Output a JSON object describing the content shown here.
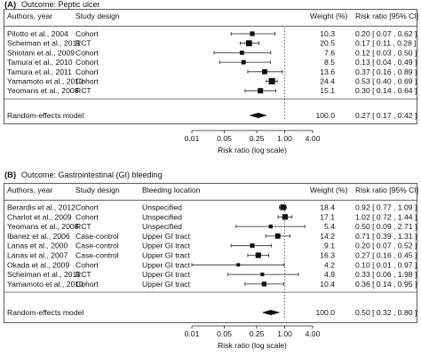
{
  "chart_data": [
    {
      "type": "forest",
      "panel_label": "(A)",
      "title": "Outcome: Peptic ulcer",
      "columns": {
        "authors": "Authors, year",
        "design": "Study design",
        "weight": "Weight (%)",
        "rr": "Risk ratio [95% CI]"
      },
      "studies": [
        {
          "author": "Pilotto et al., 2004",
          "design": "Cohort",
          "weight": "10.3",
          "rr": 0.2,
          "lo": 0.07,
          "hi": 0.62,
          "rr_text": "0.20 [ 0.07 , 0.62 ]"
        },
        {
          "author": "Scheiman et al., 2011",
          "design": "RCT",
          "weight": "20.5",
          "rr": 0.17,
          "lo": 0.11,
          "hi": 0.28,
          "rr_text": "0.17 [ 0.11 , 0.28 ]"
        },
        {
          "author": "Shiotani et al., 2009",
          "design": "Cohort",
          "weight": "7.6",
          "rr": 0.12,
          "lo": 0.03,
          "hi": 0.5,
          "rr_text": "0.12 [ 0.03 , 0.50 ]"
        },
        {
          "author": "Tamura et al., 2010",
          "design": "Cohort",
          "weight": "8.5",
          "rr": 0.13,
          "lo": 0.04,
          "hi": 0.49,
          "rr_text": "0.13 [ 0.04 , 0.49 ]"
        },
        {
          "author": "Tamura et al., 2011",
          "design": "Cohort",
          "weight": "13.6",
          "rr": 0.37,
          "lo": 0.16,
          "hi": 0.89,
          "rr_text": "0.37 [ 0.16 , 0.89 ]"
        },
        {
          "author": "Yamamoto et al., 2010",
          "design": "Cohort",
          "weight": "24.4",
          "rr": 0.53,
          "lo": 0.4,
          "hi": 0.69,
          "rr_text": "0.53 [ 0.40 , 0.69 ]"
        },
        {
          "author": "Yeomans et al., 2008",
          "design": "RCT",
          "weight": "15.1",
          "rr": 0.3,
          "lo": 0.14,
          "hi": 0.64,
          "rr_text": "0.30 [ 0.14 , 0.64 ]"
        }
      ],
      "summary": {
        "label": "Random-effects model",
        "weight": "100.0",
        "rr": 0.27,
        "lo": 0.17,
        "hi": 0.42,
        "rr_text": "0.27 [ 0.17 , 0.42 ]"
      },
      "x_scale": "log",
      "xlim": [
        0.01,
        4.0
      ],
      "xticks": [
        0.01,
        0.05,
        0.25,
        1.0,
        4.0
      ],
      "xtick_labels": [
        "0.01",
        "0.05",
        "0.25",
        "1.00",
        "4.00"
      ],
      "xlabel": "Risk ratio (log scale)",
      "reference_line": 1.0
    },
    {
      "type": "forest",
      "panel_label": "(B)",
      "title": "Outcome: Gastrointestinal (GI) bleeding",
      "columns": {
        "authors": "Authors, year",
        "design": "Study design",
        "location": "Bleeding location",
        "weight": "Weight (%)",
        "rr": "Risk ratio [95% CI]"
      },
      "studies": [
        {
          "author": "Berardis et al., 2012",
          "design": "Cohort",
          "location": "Unspecified",
          "weight": "18.4",
          "rr": 0.92,
          "lo": 0.77,
          "hi": 1.09,
          "rr_text": "0.92 [ 0.77 , 1.09 ]"
        },
        {
          "author": "Charlot et al., 2009",
          "design": "Cohort",
          "location": "Unspecified",
          "weight": "17.1",
          "rr": 1.02,
          "lo": 0.72,
          "hi": 1.44,
          "rr_text": "1.02 [ 0.72 , 1.44 ]"
        },
        {
          "author": "Yeomans et al., 2008",
          "design": "RCT",
          "location": "Unspecified",
          "weight": "5.4",
          "rr": 0.5,
          "lo": 0.09,
          "hi": 2.71,
          "rr_text": "0.50 [ 0.09 , 2.71 ]"
        },
        {
          "author": "Ibanez et al., 2006",
          "design": "Case-control",
          "location": "Upper GI tract",
          "weight": "14.2",
          "rr": 0.71,
          "lo": 0.39,
          "hi": 1.31,
          "rr_text": "0.71 [ 0.39 , 1.31 ]"
        },
        {
          "author": "Lanas et al., 2000",
          "design": "Case-control",
          "location": "Upper GI tract",
          "weight": "9.1",
          "rr": 0.2,
          "lo": 0.07,
          "hi": 0.52,
          "rr_text": "0.20 [ 0.07 , 0.52 ]"
        },
        {
          "author": "Lanas et al., 2007",
          "design": "Case-control",
          "location": "Upper GI tract",
          "weight": "16.3",
          "rr": 0.27,
          "lo": 0.16,
          "hi": 0.45,
          "rr_text": "0.27 [ 0.16 , 0.45 ]"
        },
        {
          "author": "Okada et al., 2009",
          "design": "Cohort",
          "location": "Upper GI tract",
          "weight": "4.2",
          "rr": 0.1,
          "lo": 0.01,
          "hi": 0.97,
          "rr_text": "0.10 [ 0.01 , 0.97 ]"
        },
        {
          "author": "Scheiman et al., 2011",
          "design": "RCT",
          "location": "Upper GI tract",
          "weight": "4.9",
          "rr": 0.33,
          "lo": 0.06,
          "hi": 1.98,
          "rr_text": "0.33 [ 0.06 , 1.98 ]"
        },
        {
          "author": "Yamamoto et al., 2010",
          "design": "Cohort",
          "location": "Upper GI tract",
          "weight": "10.4",
          "rr": 0.36,
          "lo": 0.14,
          "hi": 0.95,
          "rr_text": "0.36 [ 0.14 , 0.95 ]"
        }
      ],
      "summary": {
        "label": "Random-effects model",
        "weight": "100.0",
        "rr": 0.5,
        "lo": 0.32,
        "hi": 0.8,
        "rr_text": "0.50 [ 0.32 , 0.80 ]"
      },
      "x_scale": "log",
      "xlim": [
        0.01,
        4.0
      ],
      "xticks": [
        0.01,
        0.05,
        0.25,
        1.0,
        4.0
      ],
      "xtick_labels": [
        "0.01",
        "0.05",
        "0.25",
        "1.00",
        "4.00"
      ],
      "xlabel": "Risk ratio (log scale)",
      "reference_line": 1.0
    }
  ]
}
